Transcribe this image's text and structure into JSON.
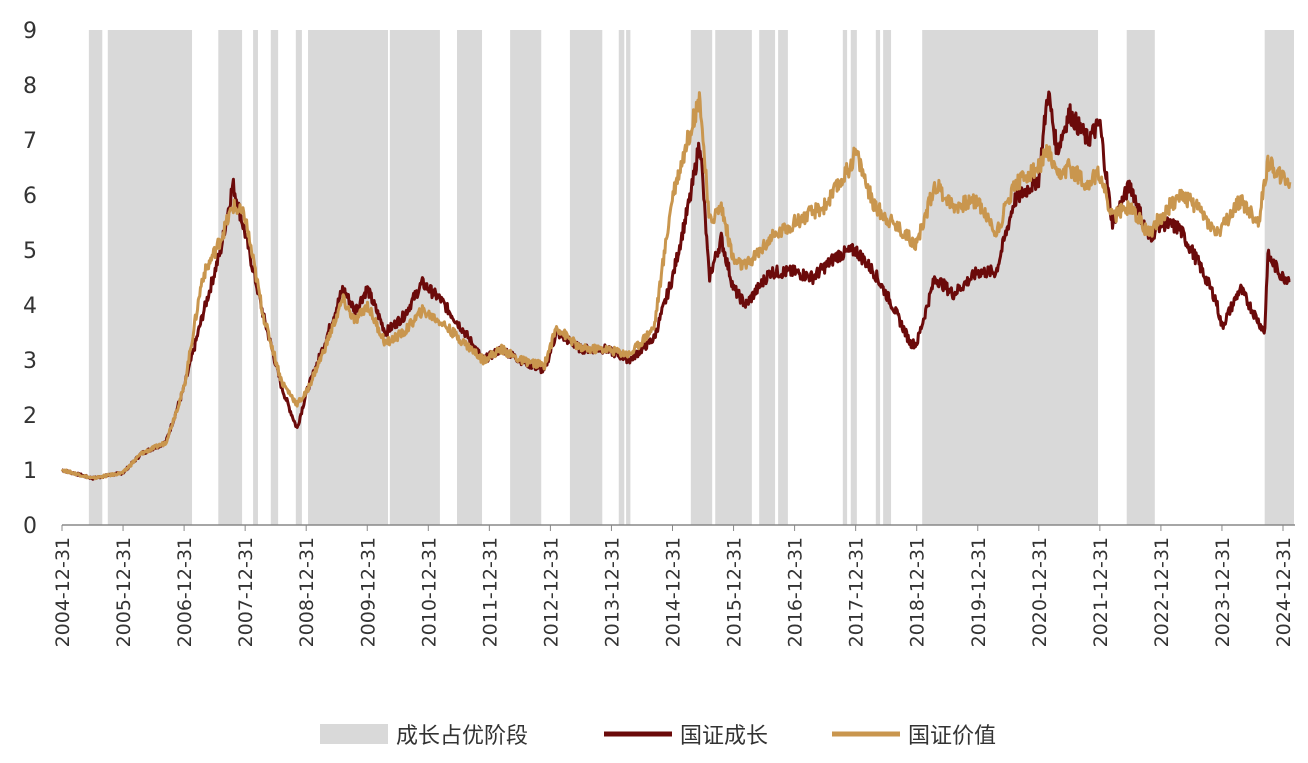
{
  "chart_data": {
    "type": "line",
    "title": "",
    "xlabel": "",
    "ylabel": "",
    "ylim": [
      0,
      9
    ],
    "xlim": [
      2005.0,
      2025.15
    ],
    "yticks": [
      "0",
      "1",
      "2",
      "3",
      "4",
      "5",
      "6",
      "7",
      "8",
      "9"
    ],
    "xticks": [
      {
        "x": 2005,
        "label": "2004-12-31"
      },
      {
        "x": 2006,
        "label": "2005-12-31"
      },
      {
        "x": 2007,
        "label": "2006-12-31"
      },
      {
        "x": 2008,
        "label": "2007-12-31"
      },
      {
        "x": 2009,
        "label": "2008-12-31"
      },
      {
        "x": 2010,
        "label": "2009-12-31"
      },
      {
        "x": 2011,
        "label": "2010-12-31"
      },
      {
        "x": 2012,
        "label": "2011-12-31"
      },
      {
        "x": 2013,
        "label": "2012-12-31"
      },
      {
        "x": 2014,
        "label": "2013-12-31"
      },
      {
        "x": 2015,
        "label": "2014-12-31"
      },
      {
        "x": 2016,
        "label": "2015-12-31"
      },
      {
        "x": 2017,
        "label": "2016-12-31"
      },
      {
        "x": 2018,
        "label": "2017-12-31"
      },
      {
        "x": 2019,
        "label": "2018-12-31"
      },
      {
        "x": 2020,
        "label": "2019-12-31"
      },
      {
        "x": 2021,
        "label": "2020-12-31"
      },
      {
        "x": 2022,
        "label": "2021-12-31"
      },
      {
        "x": 2023,
        "label": "2022-12-31"
      },
      {
        "x": 2024,
        "label": "2023-12-31"
      },
      {
        "x": 2025,
        "label": "2024-12-31"
      }
    ],
    "legend_position": "bottom",
    "shaded": {
      "name": "成长占优阶段",
      "color": "#D9D9D9",
      "periods": [
        [
          2005.44,
          2005.66
        ],
        [
          2005.75,
          2007.13
        ],
        [
          2007.56,
          2007.95
        ],
        [
          2008.13,
          2008.21
        ],
        [
          2008.42,
          2008.54
        ],
        [
          2008.83,
          2008.93
        ],
        [
          2009.03,
          2010.34
        ],
        [
          2010.37,
          2011.19
        ],
        [
          2011.47,
          2011.88
        ],
        [
          2012.34,
          2012.85
        ],
        [
          2013.32,
          2013.85
        ],
        [
          2014.12,
          2014.21
        ],
        [
          2014.24,
          2014.31
        ],
        [
          2015.3,
          2015.65
        ],
        [
          2015.7,
          2016.3
        ],
        [
          2016.42,
          2016.68
        ],
        [
          2016.73,
          2016.89
        ],
        [
          2017.79,
          2017.86
        ],
        [
          2017.92,
          2018.02
        ],
        [
          2018.33,
          2018.4
        ],
        [
          2018.45,
          2018.58
        ],
        [
          2019.09,
          2021.97
        ],
        [
          2022.44,
          2022.9
        ],
        [
          2024.7,
          2025.18
        ]
      ]
    },
    "series": [
      {
        "name": "国证成长",
        "color": "#6B0A0A",
        "points": [
          [
            2005.0,
            1.0
          ],
          [
            2005.5,
            0.85
          ],
          [
            2006.0,
            0.95
          ],
          [
            2006.3,
            1.3
          ],
          [
            2006.7,
            1.5
          ],
          [
            2007.0,
            2.5
          ],
          [
            2007.3,
            3.8
          ],
          [
            2007.6,
            5.0
          ],
          [
            2007.8,
            6.2
          ],
          [
            2008.0,
            5.3
          ],
          [
            2008.3,
            3.8
          ],
          [
            2008.6,
            2.5
          ],
          [
            2008.85,
            1.75
          ],
          [
            2009.0,
            2.4
          ],
          [
            2009.3,
            3.3
          ],
          [
            2009.6,
            4.3
          ],
          [
            2009.8,
            3.9
          ],
          [
            2010.0,
            4.3
          ],
          [
            2010.3,
            3.5
          ],
          [
            2010.6,
            3.8
          ],
          [
            2010.9,
            4.4
          ],
          [
            2011.2,
            4.1
          ],
          [
            2011.6,
            3.5
          ],
          [
            2011.9,
            3.0
          ],
          [
            2012.2,
            3.2
          ],
          [
            2012.5,
            3.0
          ],
          [
            2012.9,
            2.8
          ],
          [
            2013.1,
            3.5
          ],
          [
            2013.5,
            3.2
          ],
          [
            2013.9,
            3.2
          ],
          [
            2014.3,
            3.0
          ],
          [
            2014.7,
            3.4
          ],
          [
            2015.0,
            4.5
          ],
          [
            2015.3,
            6.0
          ],
          [
            2015.45,
            7.0
          ],
          [
            2015.6,
            4.5
          ],
          [
            2015.8,
            5.2
          ],
          [
            2016.0,
            4.3
          ],
          [
            2016.2,
            4.0
          ],
          [
            2016.6,
            4.6
          ],
          [
            2017.0,
            4.6
          ],
          [
            2017.3,
            4.5
          ],
          [
            2017.7,
            4.9
          ],
          [
            2018.0,
            5.0
          ],
          [
            2018.3,
            4.6
          ],
          [
            2018.6,
            4.0
          ],
          [
            2018.9,
            3.3
          ],
          [
            2019.0,
            3.3
          ],
          [
            2019.3,
            4.5
          ],
          [
            2019.6,
            4.2
          ],
          [
            2020.0,
            4.6
          ],
          [
            2020.3,
            4.6
          ],
          [
            2020.6,
            5.9
          ],
          [
            2021.0,
            6.3
          ],
          [
            2021.15,
            7.9
          ],
          [
            2021.3,
            6.8
          ],
          [
            2021.5,
            7.5
          ],
          [
            2021.8,
            7.0
          ],
          [
            2022.0,
            7.3
          ],
          [
            2022.2,
            5.5
          ],
          [
            2022.5,
            6.2
          ],
          [
            2022.8,
            5.2
          ],
          [
            2023.0,
            5.5
          ],
          [
            2023.3,
            5.4
          ],
          [
            2023.6,
            4.8
          ],
          [
            2023.9,
            4.1
          ],
          [
            2024.0,
            3.6
          ],
          [
            2024.3,
            4.3
          ],
          [
            2024.7,
            3.5
          ],
          [
            2024.75,
            4.9
          ],
          [
            2025.0,
            4.5
          ],
          [
            2025.12,
            4.5
          ]
        ]
      },
      {
        "name": "国证价值",
        "color": "#C9964E",
        "points": [
          [
            2005.0,
            1.0
          ],
          [
            2005.5,
            0.85
          ],
          [
            2006.0,
            0.95
          ],
          [
            2006.3,
            1.3
          ],
          [
            2006.7,
            1.5
          ],
          [
            2007.0,
            2.5
          ],
          [
            2007.3,
            4.5
          ],
          [
            2007.6,
            5.2
          ],
          [
            2007.8,
            5.8
          ],
          [
            2008.0,
            5.6
          ],
          [
            2008.3,
            3.8
          ],
          [
            2008.6,
            2.6
          ],
          [
            2008.85,
            2.2
          ],
          [
            2009.0,
            2.4
          ],
          [
            2009.3,
            3.2
          ],
          [
            2009.6,
            4.1
          ],
          [
            2009.8,
            3.7
          ],
          [
            2010.0,
            4.0
          ],
          [
            2010.3,
            3.3
          ],
          [
            2010.6,
            3.5
          ],
          [
            2010.9,
            3.9
          ],
          [
            2011.2,
            3.7
          ],
          [
            2011.6,
            3.3
          ],
          [
            2011.9,
            3.0
          ],
          [
            2012.2,
            3.2
          ],
          [
            2012.5,
            3.0
          ],
          [
            2012.9,
            2.9
          ],
          [
            2013.1,
            3.6
          ],
          [
            2013.5,
            3.2
          ],
          [
            2013.9,
            3.2
          ],
          [
            2014.3,
            3.1
          ],
          [
            2014.7,
            3.6
          ],
          [
            2015.0,
            6.0
          ],
          [
            2015.45,
            7.8
          ],
          [
            2015.6,
            5.5
          ],
          [
            2015.8,
            5.8
          ],
          [
            2016.0,
            4.8
          ],
          [
            2016.2,
            4.7
          ],
          [
            2016.6,
            5.2
          ],
          [
            2017.0,
            5.5
          ],
          [
            2017.5,
            5.8
          ],
          [
            2017.9,
            6.5
          ],
          [
            2018.0,
            6.8
          ],
          [
            2018.3,
            5.8
          ],
          [
            2018.6,
            5.5
          ],
          [
            2018.9,
            5.2
          ],
          [
            2019.0,
            5.1
          ],
          [
            2019.3,
            6.2
          ],
          [
            2019.6,
            5.8
          ],
          [
            2020.0,
            5.9
          ],
          [
            2020.3,
            5.3
          ],
          [
            2020.6,
            6.2
          ],
          [
            2021.0,
            6.5
          ],
          [
            2021.15,
            6.8
          ],
          [
            2021.3,
            6.3
          ],
          [
            2021.5,
            6.5
          ],
          [
            2021.8,
            6.2
          ],
          [
            2022.0,
            6.4
          ],
          [
            2022.2,
            5.6
          ],
          [
            2022.5,
            5.8
          ],
          [
            2022.8,
            5.3
          ],
          [
            2023.0,
            5.6
          ],
          [
            2023.3,
            6.0
          ],
          [
            2023.6,
            5.8
          ],
          [
            2023.9,
            5.3
          ],
          [
            2024.0,
            5.4
          ],
          [
            2024.3,
            5.9
          ],
          [
            2024.6,
            5.5
          ],
          [
            2024.75,
            6.6
          ],
          [
            2025.0,
            6.3
          ],
          [
            2025.12,
            6.2
          ]
        ]
      }
    ]
  }
}
